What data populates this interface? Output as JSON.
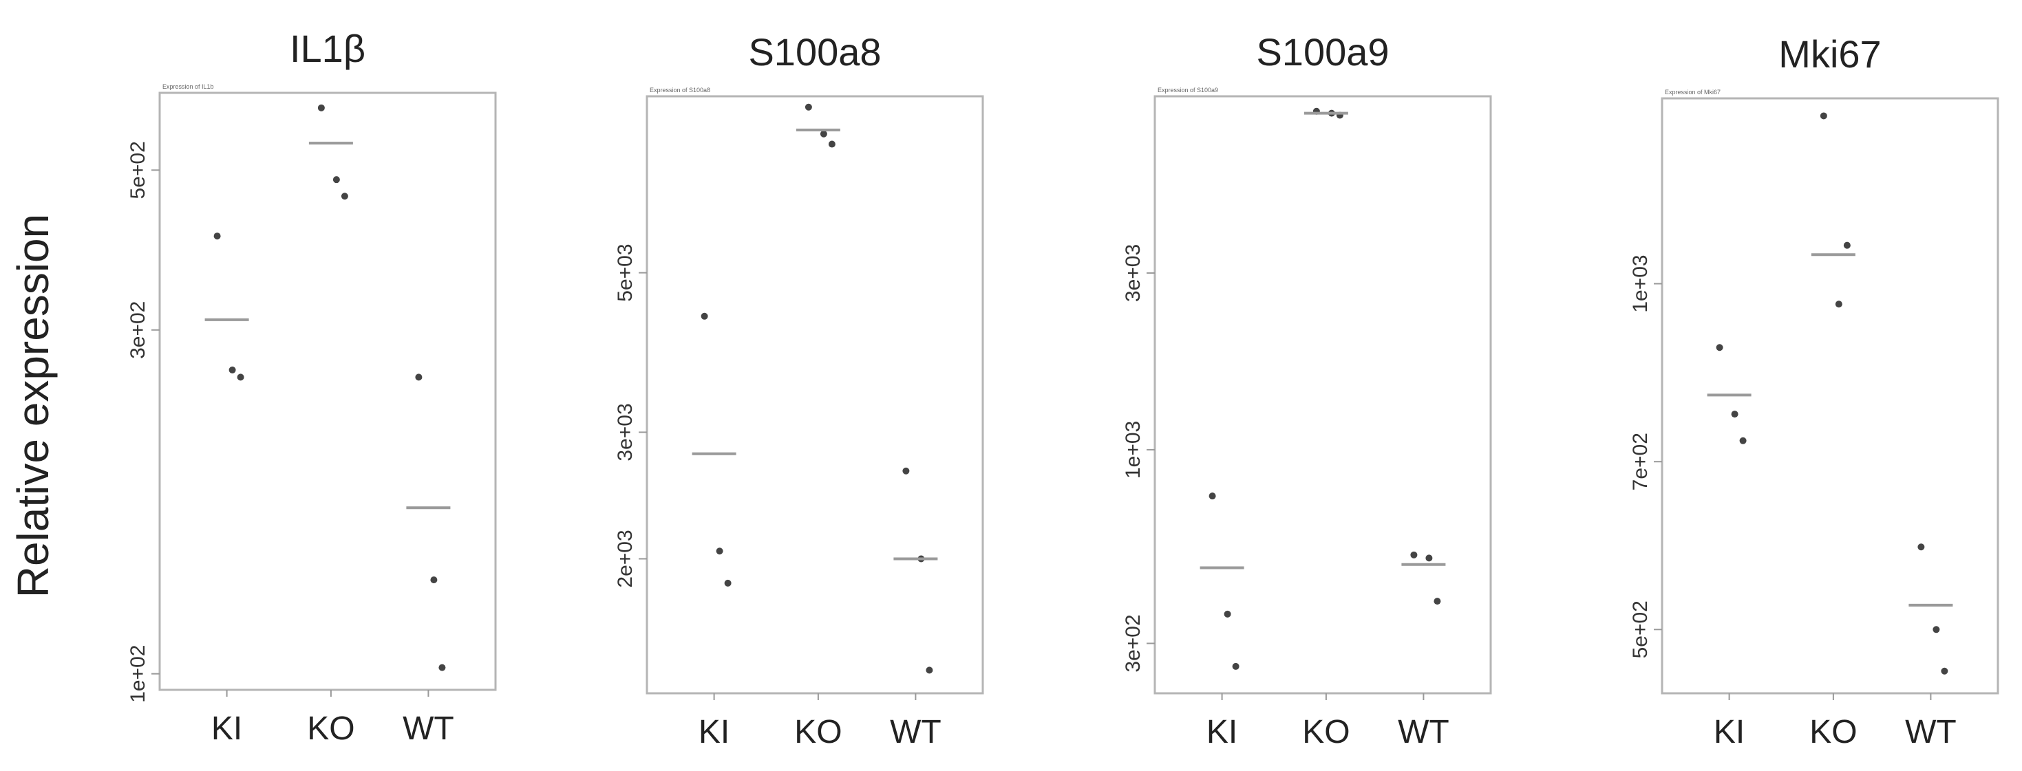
{
  "figure": {
    "ylabel": "Relative expression"
  },
  "chart_data": [
    {
      "type": "scatter",
      "title": "IL1β",
      "subtitle": "Expression of IL1b",
      "xlabel": "",
      "ylabel": "Relative expression",
      "scale": "log",
      "ylim": [
        95,
        640
      ],
      "categories": [
        "KI",
        "KO",
        "WT"
      ],
      "y_ticks": [
        {
          "value": 100,
          "label": "1e+02"
        },
        {
          "value": 300,
          "label": "3e+02"
        },
        {
          "value": 500,
          "label": "5e+02"
        }
      ],
      "points": {
        "KI": [
          405,
          264,
          258
        ],
        "KO": [
          610,
          485,
          460
        ],
        "WT": [
          258,
          135,
          102
        ]
      },
      "means": {
        "KI": 310,
        "KO": 545,
        "WT": 170
      }
    },
    {
      "type": "scatter",
      "title": "S100a8",
      "subtitle": "Expression of S100a8",
      "xlabel": "",
      "ylabel": "",
      "scale": "log",
      "ylim": [
        1300,
        8800
      ],
      "categories": [
        "KI",
        "KO",
        "WT"
      ],
      "y_ticks": [
        {
          "value": 2000,
          "label": "2e+03"
        },
        {
          "value": 3000,
          "label": "3e+03"
        },
        {
          "value": 5000,
          "label": "5e+03"
        }
      ],
      "points": {
        "KI": [
          4350,
          2050,
          1850
        ],
        "KO": [
          8500,
          7800,
          7550
        ],
        "WT": [
          2650,
          2000,
          1400
        ]
      },
      "means": {
        "KI": 2800,
        "KO": 7900,
        "WT": 2000
      }
    },
    {
      "type": "scatter",
      "title": "S100a9",
      "subtitle": "Expression of S100a9",
      "xlabel": "",
      "ylabel": "",
      "scale": "log",
      "ylim": [
        220,
        9000
      ],
      "categories": [
        "KI",
        "KO",
        "WT"
      ],
      "y_ticks": [
        {
          "value": 300,
          "label": "3e+02"
        },
        {
          "value": 1000,
          "label": "1e+03"
        },
        {
          "value": 3000,
          "label": "3e+03"
        }
      ],
      "points": {
        "KI": [
          750,
          360,
          260
        ],
        "KO": [
          8200,
          8100,
          8000
        ],
        "WT": [
          520,
          510,
          390
        ]
      },
      "means": {
        "KI": 480,
        "KO": 8100,
        "WT": 490
      }
    },
    {
      "type": "scatter",
      "title": "Mki67",
      "subtitle": "Expression of Mki67",
      "xlabel": "",
      "ylabel": "",
      "scale": "log",
      "ylim": [
        440,
        1450
      ],
      "categories": [
        "KI",
        "KO",
        "WT"
      ],
      "y_ticks": [
        {
          "value": 500,
          "label": "5e+02"
        },
        {
          "value": 700,
          "label": "7e+02"
        },
        {
          "value": 1000,
          "label": "1e+03"
        }
      ],
      "points": {
        "KI": [
          880,
          770,
          730
        ],
        "KO": [
          1400,
          960,
          1080
        ],
        "WT": [
          590,
          500,
          460
        ]
      },
      "means": {
        "KI": 800,
        "KO": 1060,
        "WT": 525
      }
    }
  ]
}
